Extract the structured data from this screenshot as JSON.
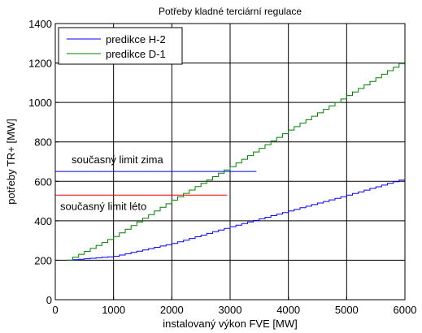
{
  "chart_data": {
    "type": "line",
    "title": "Potřeby kladné terciární regulace",
    "xlabel": "instalovaný výkon FVE [MW]",
    "ylabel": "potřeby TR+ [MW]",
    "xlim": [
      0,
      6000
    ],
    "ylim": [
      0,
      1400
    ],
    "xticks": [
      0,
      1000,
      2000,
      3000,
      4000,
      5000,
      6000
    ],
    "yticks": [
      0,
      200,
      400,
      600,
      800,
      1000,
      1200,
      1400
    ],
    "grid": true,
    "legend_position": "top-left",
    "series": [
      {
        "name": "predikce H-2",
        "color": "#0000ff",
        "step": true,
        "x": [
          200,
          1000,
          2000,
          3000,
          4000,
          5000,
          6000
        ],
        "y": [
          200,
          220,
          285,
          370,
          450,
          530,
          615
        ]
      },
      {
        "name": "predikce D-1",
        "color": "#008000",
        "step": true,
        "x": [
          200,
          1000,
          2000,
          3000,
          4000,
          5000,
          6000
        ],
        "y": [
          200,
          320,
          505,
          675,
          860,
          1035,
          1215
        ]
      }
    ],
    "reference_lines": [
      {
        "label": "současný limit zima",
        "y": 650,
        "x_start": 0,
        "x_end": 3450,
        "color": "#0000ff"
      },
      {
        "label": "současný limit léto",
        "y": 530,
        "x_start": 0,
        "x_end": 2950,
        "color": "#ff0000"
      }
    ]
  }
}
